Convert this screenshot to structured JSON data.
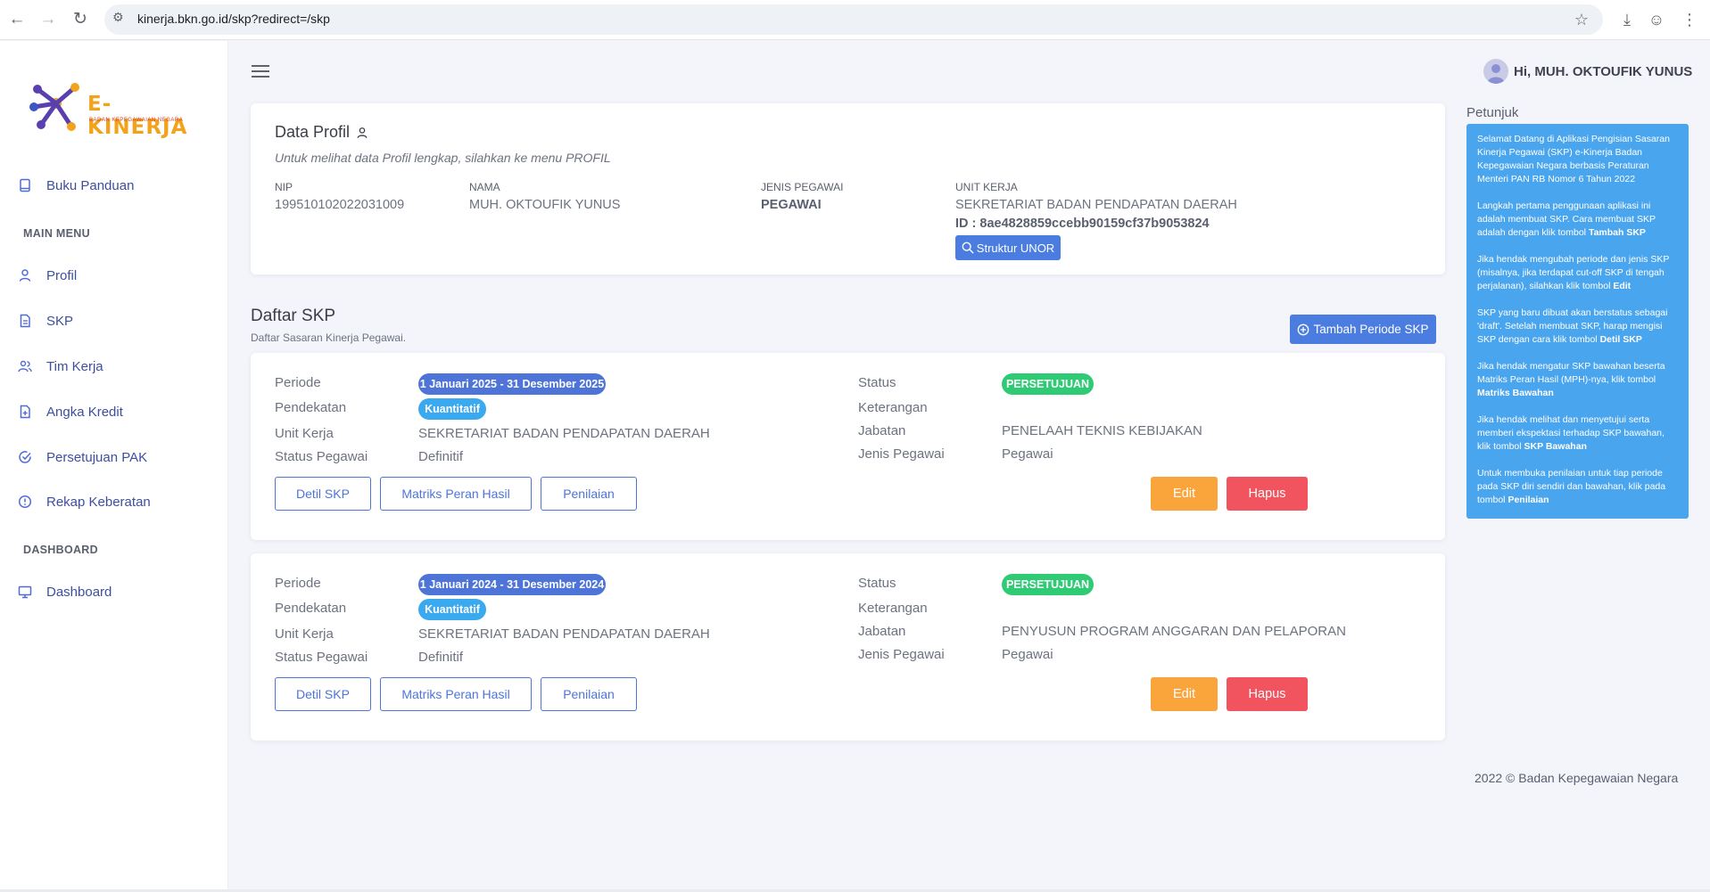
{
  "browser": {
    "url": "kinerja.bkn.go.id/skp?redirect=/skp"
  },
  "logo": {
    "title": "E-KINERJA",
    "subtitle": "BADAN KEPEGAWAIAN NEGARA"
  },
  "sidebar": {
    "top_item": "Buku Panduan",
    "main_menu_heading": "MAIN MENU",
    "main_menu": [
      "Profil",
      "SKP",
      "Tim Kerja",
      "Angka Kredit",
      "Persetujuan PAK",
      "Rekap Keberatan"
    ],
    "dashboard_heading": "DASHBOARD",
    "dashboard_item": "Dashboard"
  },
  "header": {
    "greeting": "Hi, MUH. OKTOUFIK YUNUS"
  },
  "profile": {
    "title": "Data Profil",
    "subtitle": "Untuk melihat data Profil lengkap, silahkan ke menu PROFIL",
    "nip_label": "NIP",
    "nip_value": "199510102022031009",
    "nama_label": "NAMA",
    "nama_value": "MUH. OKTOUFIK YUNUS",
    "jenis_label": "JENIS PEGAWAI",
    "jenis_value": "PEGAWAI",
    "unit_label": "UNIT KERJA",
    "unit_value": "SEKRETARIAT BADAN PENDAPATAN DAERAH",
    "unit_id": "ID : 8ae4828859ccebb90159cf37b9053824",
    "struktur_button": "Struktur UNOR"
  },
  "daftar": {
    "title": "Daftar SKP",
    "subtitle": "Daftar Sasaran Kinerja Pegawai.",
    "tambah_button": "Tambah Periode SKP"
  },
  "labels": {
    "periode": "Periode",
    "pendekatan": "Pendekatan",
    "unit_kerja": "Unit Kerja",
    "status_pegawai": "Status Pegawai",
    "status": "Status",
    "keterangan": "Keterangan",
    "jabatan": "Jabatan",
    "jenis_pegawai": "Jenis Pegawai",
    "detil": "Detil SKP",
    "matriks": "Matriks Peran Hasil",
    "penilaian": "Penilaian",
    "edit": "Edit",
    "hapus": "Hapus"
  },
  "skp": [
    {
      "periode": "1 Januari 2025 - 31 Desember 2025",
      "pendekatan": "Kuantitatif",
      "unit_kerja": "SEKRETARIAT BADAN PENDAPATAN DAERAH",
      "status_pegawai": "Definitif",
      "status": "PERSETUJUAN",
      "keterangan": "",
      "jabatan": "PENELAAH TEKNIS KEBIJAKAN",
      "jenis_pegawai": "Pegawai"
    },
    {
      "periode": "1 Januari 2024 - 31 Desember 2024",
      "pendekatan": "Kuantitatif",
      "unit_kerja": "SEKRETARIAT BADAN PENDAPATAN DAERAH",
      "status_pegawai": "Definitif",
      "status": "PERSETUJUAN",
      "keterangan": "",
      "jabatan": "PENYUSUN PROGRAM ANGGARAN DAN PELAPORAN",
      "jenis_pegawai": "Pegawai"
    }
  ],
  "petunjuk": {
    "title": "Petunjuk",
    "p1": "Selamat Datang di Aplikasi Pengisian Sasaran Kinerja Pegawai (SKP) e-Kinerja Badan Kepegawaian Negara berbasis Peraturan Menteri PAN RB Nomor 6 Tahun 2022",
    "p2_text": "Langkah pertama penggunaan aplikasi ini adalah membuat SKP. Cara membuat SKP adalah dengan klik tombol",
    "p2_bold": "Tambah SKP",
    "p3_text": "Jika hendak mengubah periode dan jenis SKP (misalnya, jika terdapat cut-off SKP di tengah perjalanan), silahkan klik tombol",
    "p3_bold": "Edit",
    "p4_text": "SKP yang baru dibuat akan berstatus sebagai 'draft'. Setelah membuat SKP, harap mengisi SKP dengan cara klik tombol",
    "p4_bold": "Detil SKP",
    "p5_text": "Jika hendak mengatur SKP bawahan beserta Matriks Peran Hasil (MPH)-nya, klik tombol",
    "p5_bold": "Matriks Bawahan",
    "p6_text": "Jika hendak melihat dan menyetujui serta memberi ekspektasi terhadap SKP bawahan, klik tombol",
    "p6_bold": "SKP Bawahan",
    "p7_text": "Untuk membuka penilaian untuk tiap periode pada SKP diri sendiri dan bawahan, klik pada tombol",
    "p7_bold": "Penilaian"
  },
  "footer": {
    "text": "2022 © Badan Kepegawaian Negara"
  },
  "colors": {
    "primary": "#4e74d8",
    "info_panel": "#4aa5ef",
    "success": "#2ecb74",
    "warning": "#f9a53b",
    "danger": "#f1545f"
  }
}
